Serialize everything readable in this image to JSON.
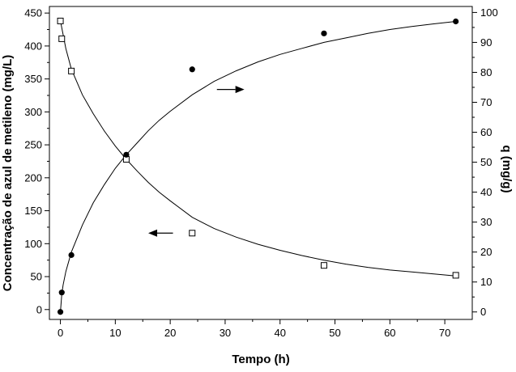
{
  "chart_data": {
    "type": "scatter",
    "title": "",
    "xlabel": "Tempo (h)",
    "ylabel_left": "Concentração de azul de metileno (mg/L)",
    "ylabel_right": "q (mg/g)",
    "xlim": [
      -2,
      75
    ],
    "ylim_left": [
      -15,
      460
    ],
    "ylim_right": [
      -2.5,
      102
    ],
    "x_ticks": [
      0,
      10,
      20,
      30,
      40,
      50,
      60,
      70
    ],
    "y_left_ticks": [
      0,
      50,
      100,
      150,
      200,
      250,
      300,
      350,
      400,
      450
    ],
    "y_right_ticks": [
      0,
      10,
      20,
      30,
      40,
      50,
      60,
      70,
      80,
      90,
      100
    ],
    "grid": false,
    "series": [
      {
        "axis": "left",
        "marker": "open-square",
        "x": [
          0,
          0.25,
          2,
          12,
          24,
          48,
          72
        ],
        "y": [
          438,
          411,
          362,
          228,
          116,
          67,
          52
        ]
      },
      {
        "axis": "right",
        "marker": "filled-circle",
        "x": [
          0,
          0.25,
          2,
          12,
          24,
          48,
          72
        ],
        "y": [
          0,
          6.5,
          19,
          52.5,
          81,
          93,
          97
        ]
      }
    ],
    "fit_curves": [
      {
        "axis": "left",
        "x": [
          0,
          1,
          2,
          4,
          6,
          8,
          10,
          12,
          14,
          16,
          18,
          20,
          24,
          28,
          32,
          36,
          40,
          44,
          48,
          52,
          56,
          60,
          64,
          68,
          72
        ],
        "y": [
          438,
          396,
          365,
          326,
          297,
          271,
          248,
          228,
          210,
          193,
          178,
          165,
          140,
          123,
          110,
          99,
          90,
          82,
          75,
          69,
          64,
          60,
          57,
          54,
          51
        ]
      },
      {
        "axis": "right",
        "x": [
          0,
          0.25,
          0.5,
          1,
          2,
          4,
          6,
          8,
          10,
          12,
          14,
          16,
          18,
          20,
          24,
          28,
          32,
          36,
          40,
          44,
          48,
          52,
          56,
          60,
          64,
          68,
          72
        ],
        "y": [
          0,
          6,
          9,
          13.5,
          20,
          29,
          36.5,
          42.5,
          48,
          52.5,
          56.5,
          60.5,
          64,
          67,
          72.5,
          77,
          80.5,
          83.5,
          86,
          88,
          90,
          91.5,
          93,
          94.3,
          95.3,
          96.2,
          97
        ]
      }
    ],
    "annotations": [
      {
        "type": "arrow",
        "direction": "left",
        "axis": "left",
        "x_from": 20.5,
        "x_to": 16,
        "y": 116
      },
      {
        "type": "arrow",
        "direction": "right",
        "axis": "left",
        "x_from": 28.5,
        "x_to": 33.5,
        "y": 334
      }
    ]
  }
}
